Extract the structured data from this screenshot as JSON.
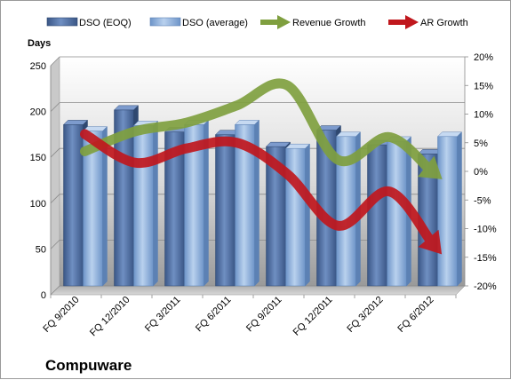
{
  "chart_data": {
    "type": "bar",
    "title": "Compuware",
    "ylabel": "Days",
    "categories": [
      "FQ 9/2010",
      "FQ 12/2010",
      "FQ 3/2011",
      "FQ 6/2011",
      "FQ 9/2011",
      "FQ 12/2011",
      "FQ 3/2012",
      "FQ 6/2012"
    ],
    "ylim": [
      0,
      250
    ],
    "yticks": [
      "0",
      "50",
      "100",
      "150",
      "200",
      "250"
    ],
    "y2lim": [
      -20,
      20
    ],
    "y2ticks": [
      "-20%",
      "-15%",
      "-10%",
      "-5%",
      "0%",
      "5%",
      "10%",
      "15%",
      "20%"
    ],
    "series": [
      {
        "name": "DSO (EOQ)",
        "type": "bar",
        "axis": "left",
        "color": "#4f6fa3",
        "values": [
          176,
          192,
          168,
          165,
          152,
          170,
          154,
          144
        ]
      },
      {
        "name": "DSO (average)",
        "type": "bar",
        "axis": "left",
        "color": "#8fb1dc",
        "values": [
          169,
          175,
          176,
          176,
          150,
          163,
          158,
          163
        ]
      },
      {
        "name": "Revenue Growth",
        "type": "line",
        "axis": "right",
        "color": "#7f9f3f",
        "values": [
          3.5,
          7,
          8.5,
          11.5,
          15,
          2,
          6,
          -1
        ]
      },
      {
        "name": "AR Growth",
        "type": "line",
        "axis": "right",
        "color": "#c0171d",
        "values": [
          6.5,
          1.5,
          4,
          5,
          -0.5,
          -9.5,
          -3.5,
          -14
        ]
      }
    ],
    "grid": true,
    "legend": "top"
  }
}
